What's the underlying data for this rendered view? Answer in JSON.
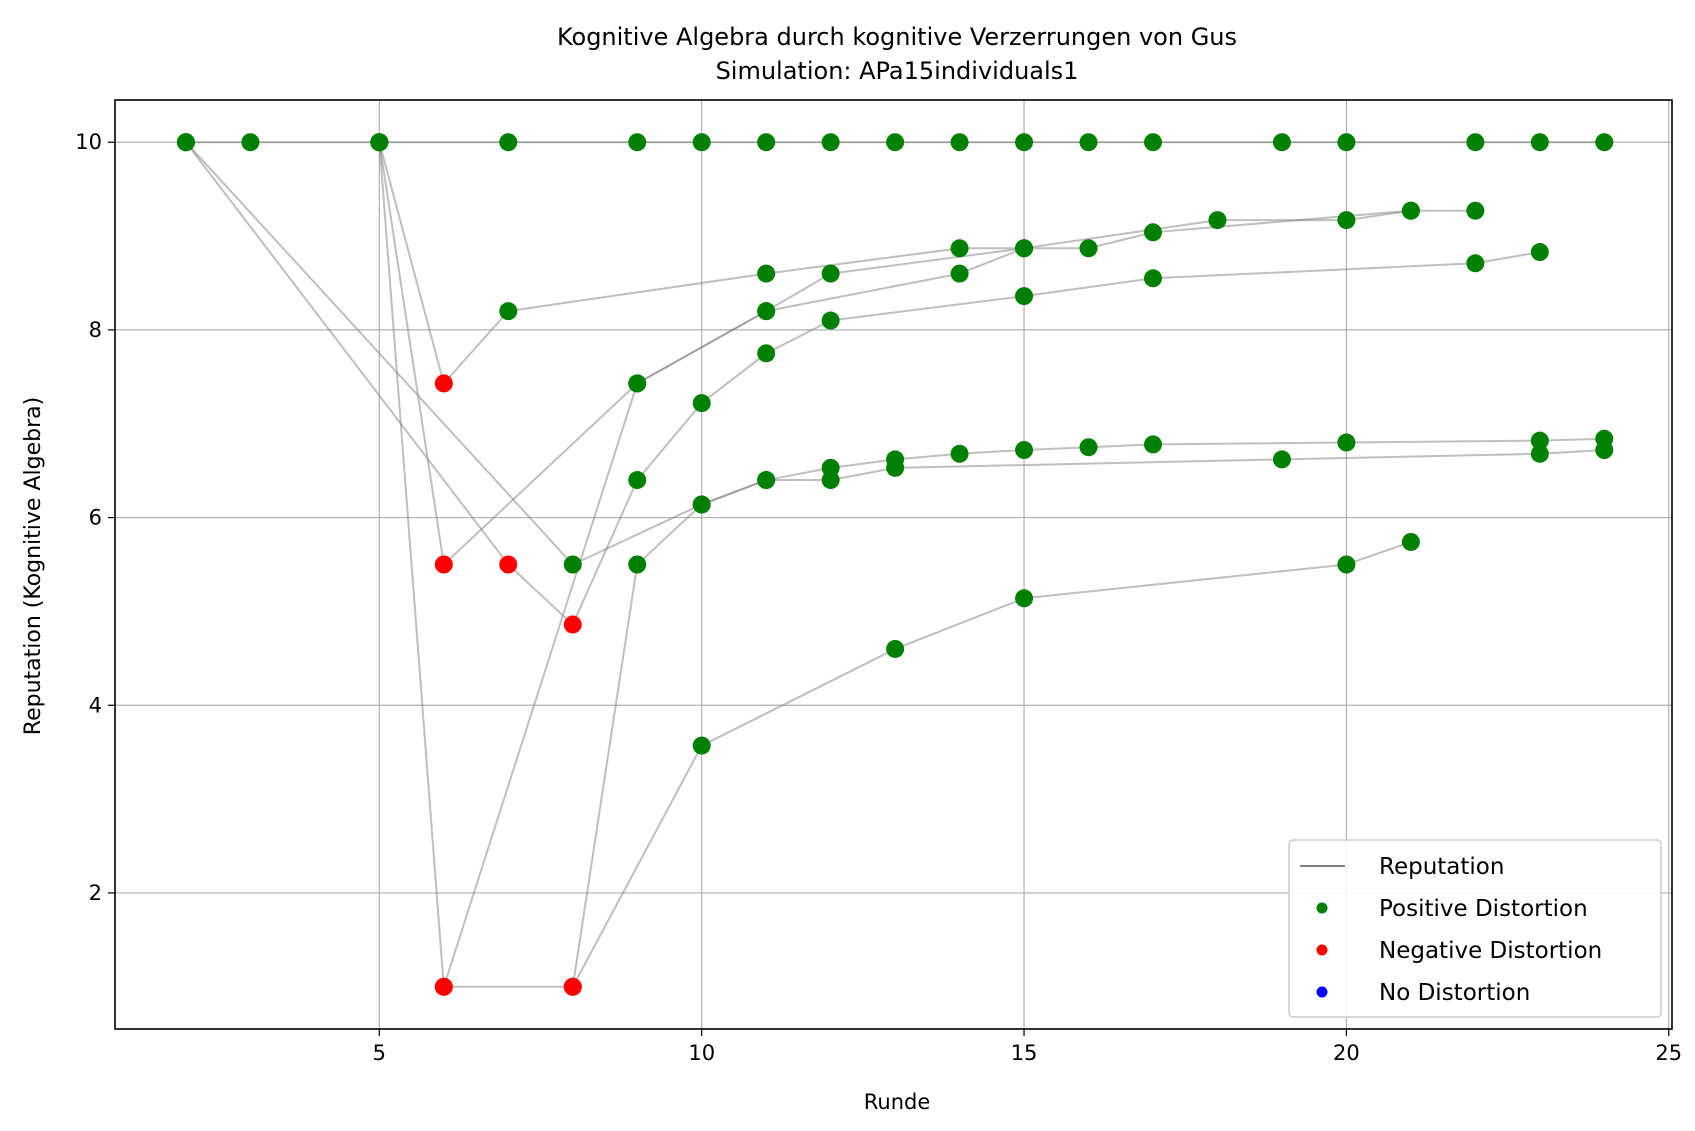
{
  "chart_data": {
    "type": "scatter",
    "title": "Kognitive Algebra durch kognitive Verzerrungen von Gus",
    "subtitle": "Simulation: APa15individuals1",
    "xlabel": "Runde",
    "ylabel": "Reputation (Kognitive Algebra)",
    "xlim": [
      0.9,
      25.05
    ],
    "ylim": [
      0.55,
      10.45
    ],
    "xticks": [
      5,
      10,
      15,
      20,
      25
    ],
    "yticks": [
      2,
      4,
      6,
      8,
      10
    ],
    "grid": true,
    "legend_position": "bottom-right",
    "legend": [
      {
        "label": "Reputation",
        "kind": "line",
        "color": "#808080"
      },
      {
        "label": "Positive Distortion",
        "kind": "marker",
        "color": "#008000"
      },
      {
        "label": "Negative Distortion",
        "kind": "marker",
        "color": "#ff0000"
      },
      {
        "label": "No Distortion",
        "kind": "marker",
        "color": "#0000ff"
      }
    ],
    "colors": {
      "positive": "#008000",
      "negative": "#ff0000",
      "none": "#0000ff",
      "line": "#808080"
    },
    "series": [
      {
        "points": [
          {
            "x": 2,
            "y": 10,
            "d": "positive"
          },
          {
            "x": 3,
            "y": 10,
            "d": "positive"
          },
          {
            "x": 5,
            "y": 10,
            "d": "positive"
          },
          {
            "x": 7,
            "y": 10,
            "d": "positive"
          },
          {
            "x": 9,
            "y": 10,
            "d": "positive"
          },
          {
            "x": 10,
            "y": 10,
            "d": "positive"
          },
          {
            "x": 11,
            "y": 10,
            "d": "positive"
          },
          {
            "x": 12,
            "y": 10,
            "d": "positive"
          },
          {
            "x": 13,
            "y": 10,
            "d": "positive"
          },
          {
            "x": 14,
            "y": 10,
            "d": "positive"
          },
          {
            "x": 15,
            "y": 10,
            "d": "positive"
          },
          {
            "x": 16,
            "y": 10,
            "d": "positive"
          },
          {
            "x": 17,
            "y": 10,
            "d": "positive"
          },
          {
            "x": 19,
            "y": 10,
            "d": "positive"
          },
          {
            "x": 20,
            "y": 10,
            "d": "positive"
          },
          {
            "x": 22,
            "y": 10,
            "d": "positive"
          },
          {
            "x": 23,
            "y": 10,
            "d": "positive"
          },
          {
            "x": 24,
            "y": 10,
            "d": "positive"
          }
        ]
      },
      {
        "points": [
          {
            "x": 2,
            "y": 10,
            "d": "positive"
          },
          {
            "x": 7,
            "y": 5.5,
            "d": "negative"
          },
          {
            "x": 8,
            "y": 4.86,
            "d": "negative"
          },
          {
            "x": 9,
            "y": 6.4,
            "d": "positive"
          },
          {
            "x": 10,
            "y": 7.22,
            "d": "positive"
          },
          {
            "x": 11,
            "y": 7.75,
            "d": "positive"
          },
          {
            "x": 12,
            "y": 8.1,
            "d": "positive"
          },
          {
            "x": 15,
            "y": 8.36,
            "d": "positive"
          },
          {
            "x": 17,
            "y": 8.55,
            "d": "positive"
          },
          {
            "x": 22,
            "y": 8.71,
            "d": "positive"
          },
          {
            "x": 23,
            "y": 8.83,
            "d": "positive"
          }
        ]
      },
      {
        "points": [
          {
            "x": 2,
            "y": 10,
            "d": "positive"
          },
          {
            "x": 8,
            "y": 5.5,
            "d": "positive"
          },
          {
            "x": 10,
            "y": 6.14,
            "d": "positive"
          },
          {
            "x": 11,
            "y": 6.4,
            "d": "positive"
          },
          {
            "x": 12,
            "y": 6.53,
            "d": "positive"
          },
          {
            "x": 13,
            "y": 6.62,
            "d": "positive"
          },
          {
            "x": 14,
            "y": 6.68,
            "d": "positive"
          },
          {
            "x": 15,
            "y": 6.72,
            "d": "positive"
          },
          {
            "x": 16,
            "y": 6.75,
            "d": "positive"
          },
          {
            "x": 17,
            "y": 6.78,
            "d": "positive"
          },
          {
            "x": 20,
            "y": 6.8,
            "d": "positive"
          },
          {
            "x": 23,
            "y": 6.82,
            "d": "positive"
          },
          {
            "x": 24,
            "y": 6.84,
            "d": "positive"
          }
        ]
      },
      {
        "points": [
          {
            "x": 5,
            "y": 10,
            "d": "positive"
          },
          {
            "x": 6,
            "y": 7.43,
            "d": "negative"
          },
          {
            "x": 7,
            "y": 8.2,
            "d": "positive"
          },
          {
            "x": 11,
            "y": 8.6,
            "d": "positive"
          },
          {
            "x": 14,
            "y": 8.87,
            "d": "positive"
          },
          {
            "x": 16,
            "y": 8.87,
            "d": "positive"
          },
          {
            "x": 17,
            "y": 9.04,
            "d": "positive"
          },
          {
            "x": 21,
            "y": 9.27,
            "d": "positive"
          },
          {
            "x": 22,
            "y": 9.27,
            "d": "positive"
          }
        ]
      },
      {
        "points": [
          {
            "x": 5,
            "y": 10,
            "d": "positive"
          },
          {
            "x": 6,
            "y": 5.5,
            "d": "negative"
          },
          {
            "x": 9,
            "y": 7.43,
            "d": "positive"
          },
          {
            "x": 11,
            "y": 8.2,
            "d": "positive"
          },
          {
            "x": 12,
            "y": 8.6,
            "d": "positive"
          },
          {
            "x": 15,
            "y": 8.87,
            "d": "positive"
          },
          {
            "x": 18,
            "y": 9.17,
            "d": "positive"
          },
          {
            "x": 20,
            "y": 9.17,
            "d": "positive"
          },
          {
            "x": 21,
            "y": 9.27,
            "d": "positive"
          }
        ]
      },
      {
        "points": [
          {
            "x": 5,
            "y": 10,
            "d": "positive"
          },
          {
            "x": 6,
            "y": 1,
            "d": "negative"
          },
          {
            "x": 9,
            "y": 7.43,
            "d": "positive"
          },
          {
            "x": 11,
            "y": 8.2,
            "d": "positive"
          },
          {
            "x": 14,
            "y": 8.6,
            "d": "positive"
          },
          {
            "x": 15,
            "y": 8.87,
            "d": "positive"
          }
        ]
      },
      {
        "points": [
          {
            "x": 6,
            "y": 1,
            "d": "negative"
          },
          {
            "x": 8,
            "y": 1,
            "d": "negative"
          },
          {
            "x": 9,
            "y": 5.5,
            "d": "positive"
          },
          {
            "x": 10,
            "y": 6.14,
            "d": "positive"
          },
          {
            "x": 11,
            "y": 6.4,
            "d": "positive"
          },
          {
            "x": 12,
            "y": 6.4,
            "d": "positive"
          },
          {
            "x": 13,
            "y": 6.53,
            "d": "positive"
          },
          {
            "x": 19,
            "y": 6.62,
            "d": "positive"
          },
          {
            "x": 23,
            "y": 6.68,
            "d": "positive"
          },
          {
            "x": 24,
            "y": 6.72,
            "d": "positive"
          }
        ]
      },
      {
        "points": [
          {
            "x": 8,
            "y": 1,
            "d": "negative"
          },
          {
            "x": 10,
            "y": 3.57,
            "d": "positive"
          },
          {
            "x": 13,
            "y": 4.6,
            "d": "positive"
          },
          {
            "x": 15,
            "y": 5.14,
            "d": "positive"
          },
          {
            "x": 20,
            "y": 5.5,
            "d": "positive"
          },
          {
            "x": 21,
            "y": 5.74,
            "d": "positive"
          }
        ]
      }
    ]
  }
}
